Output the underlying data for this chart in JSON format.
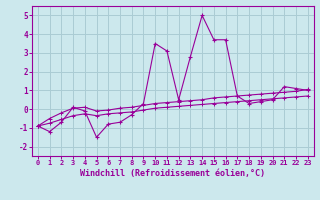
{
  "x": [
    0,
    1,
    2,
    3,
    4,
    5,
    6,
    7,
    8,
    9,
    10,
    11,
    12,
    13,
    14,
    15,
    16,
    17,
    18,
    19,
    20,
    21,
    22,
    23
  ],
  "y_main": [
    -0.9,
    -1.2,
    -0.7,
    0.1,
    -0.1,
    -1.5,
    -0.8,
    -0.7,
    -0.3,
    0.3,
    3.5,
    3.1,
    0.5,
    2.8,
    5.0,
    3.7,
    3.7,
    0.7,
    0.3,
    0.4,
    0.5,
    1.2,
    1.1,
    1.0
  ],
  "y_upper": [
    -0.9,
    -0.5,
    -0.2,
    0.05,
    0.1,
    -0.1,
    -0.05,
    0.05,
    0.1,
    0.2,
    0.3,
    0.35,
    0.4,
    0.45,
    0.5,
    0.6,
    0.65,
    0.7,
    0.75,
    0.8,
    0.85,
    0.9,
    0.95,
    1.05
  ],
  "y_lower": [
    -0.9,
    -0.75,
    -0.55,
    -0.35,
    -0.25,
    -0.35,
    -0.25,
    -0.2,
    -0.15,
    -0.05,
    0.05,
    0.1,
    0.15,
    0.2,
    0.25,
    0.3,
    0.35,
    0.4,
    0.45,
    0.5,
    0.55,
    0.6,
    0.65,
    0.7
  ],
  "bg_color": "#cce8ed",
  "grid_color": "#aaccd4",
  "line_color": "#990099",
  "xlabel": "Windchill (Refroidissement éolien,°C)",
  "ylim": [
    -2.5,
    5.5
  ],
  "xlim": [
    -0.5,
    23.5
  ],
  "yticks": [
    -2,
    -1,
    0,
    1,
    2,
    3,
    4,
    5
  ],
  "xticks": [
    0,
    1,
    2,
    3,
    4,
    5,
    6,
    7,
    8,
    9,
    10,
    11,
    12,
    13,
    14,
    15,
    16,
    17,
    18,
    19,
    20,
    21,
    22,
    23
  ],
  "xlabel_fontsize": 6.0,
  "tick_fontsize": 5.0
}
